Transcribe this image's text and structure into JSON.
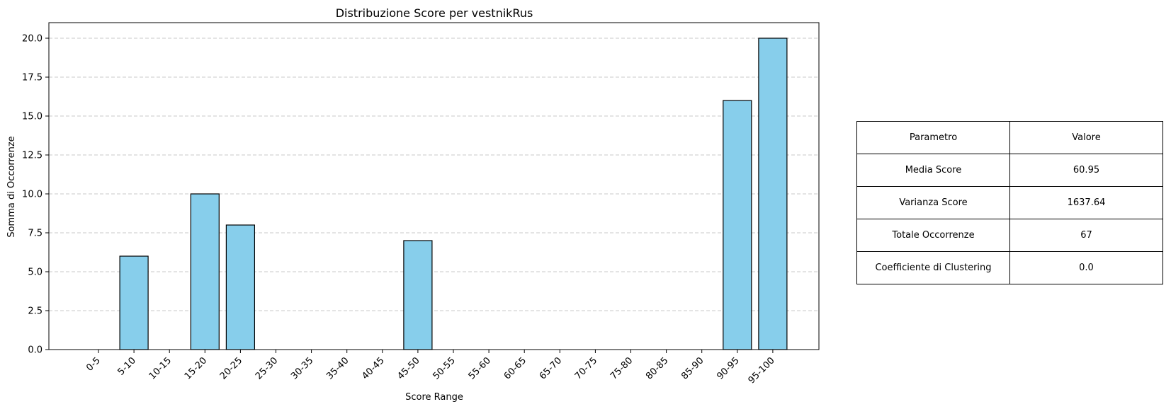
{
  "chart_data": {
    "type": "bar",
    "title": "Distribuzione Score per vestnikRus",
    "xlabel": "Score Range",
    "ylabel": "Somma di Occorrenze",
    "categories": [
      "0-5",
      "5-10",
      "10-15",
      "15-20",
      "20-25",
      "25-30",
      "30-35",
      "35-40",
      "40-45",
      "45-50",
      "50-55",
      "55-60",
      "60-65",
      "65-70",
      "70-75",
      "75-80",
      "80-85",
      "85-90",
      "90-95",
      "95-100"
    ],
    "values": [
      0,
      6,
      0,
      10,
      8,
      0,
      0,
      0,
      0,
      7,
      0,
      0,
      0,
      0,
      0,
      0,
      0,
      0,
      16,
      20
    ],
    "ylim": [
      0,
      21
    ],
    "yticks": [
      "0.0",
      "2.5",
      "5.0",
      "7.5",
      "10.0",
      "12.5",
      "15.0",
      "17.5",
      "20.0"
    ],
    "grid": "y-dashed",
    "colors": {
      "bar_fill": "#87CEEB",
      "bar_edge": "#000000",
      "grid": "#c8c8c8"
    }
  },
  "table": {
    "header": [
      "Parametro",
      "Valore"
    ],
    "rows": [
      [
        "Media Score",
        "60.95"
      ],
      [
        "Varianza Score",
        "1637.64"
      ],
      [
        "Totale Occorrenze",
        "67"
      ],
      [
        "Coefficiente di Clustering",
        "0.0"
      ]
    ]
  }
}
